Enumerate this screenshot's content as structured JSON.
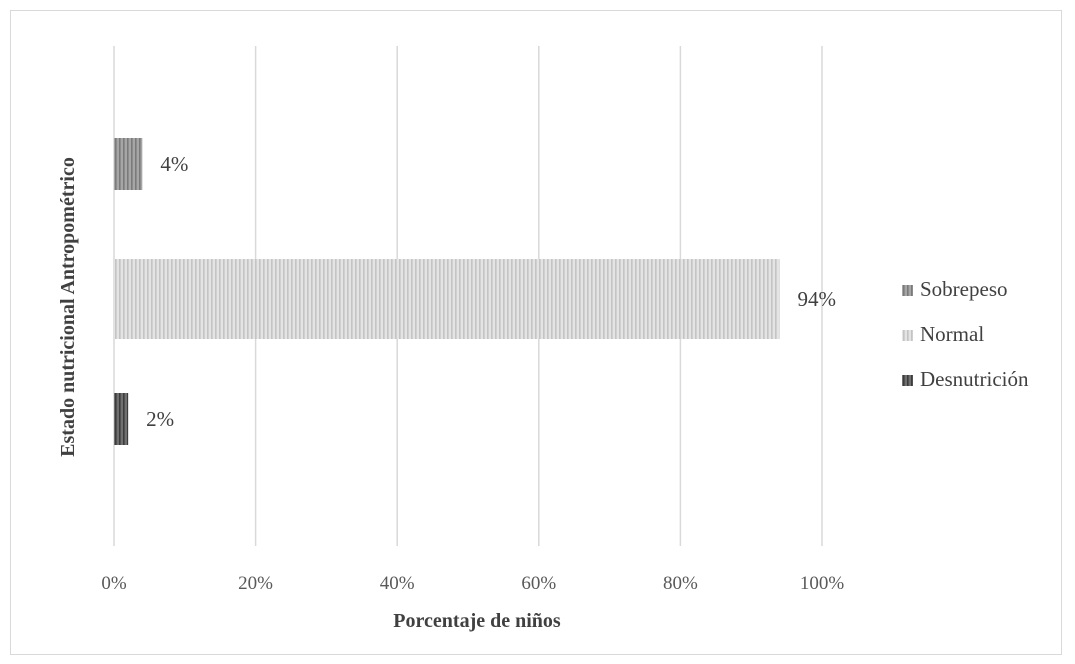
{
  "chart_data": {
    "type": "bar",
    "orientation": "horizontal",
    "categories": [
      "Desnutrición",
      "Normal",
      "Sobrepeso"
    ],
    "values": [
      2,
      94,
      4
    ],
    "data_labels": [
      "2%",
      "94%",
      "4%"
    ],
    "series": [
      {
        "name": "Sobrepeso",
        "value": 4,
        "color": "#8c8c8c"
      },
      {
        "name": "Normal",
        "value": 94,
        "color": "#d0d0d0"
      },
      {
        "name": "Desnutrición",
        "value": 2,
        "color": "#505050"
      }
    ],
    "xlabel": "Porcentaje de niños",
    "ylabel": "Estado nutricional Antropométrico",
    "xlim": [
      0,
      100
    ],
    "x_ticks": [
      0,
      20,
      40,
      60,
      80,
      100
    ],
    "x_tick_labels": [
      "0%",
      "20%",
      "40%",
      "60%",
      "80%",
      "100%"
    ],
    "grid": true,
    "legend_position": "right"
  }
}
